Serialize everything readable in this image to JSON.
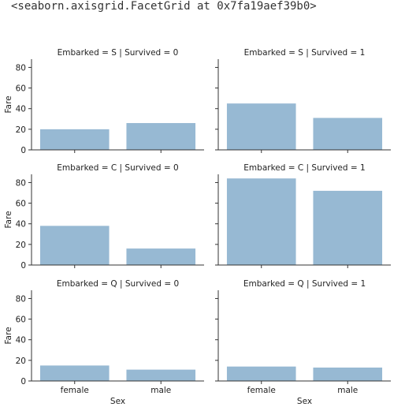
{
  "output_repr": "<seaborn.axisgrid.FacetGrid at 0x7fa19aef39b0>",
  "colors": {
    "bar": "#97b9d3",
    "axis": "#333333"
  },
  "chart_data": {
    "type": "bar",
    "layout": "facet-grid",
    "rows": 3,
    "cols": 2,
    "xlabel": "Sex",
    "ylabel": "Fare",
    "categories": [
      "female",
      "male"
    ],
    "ylim": [
      0,
      88
    ],
    "yticks": [
      0,
      20,
      40,
      60,
      80
    ],
    "grid": false,
    "panels": [
      {
        "title": "Embarked = S | Survived = 0",
        "values": [
          20,
          26
        ]
      },
      {
        "title": "Embarked = S | Survived = 1",
        "values": [
          45,
          31
        ]
      },
      {
        "title": "Embarked = C | Survived = 0",
        "values": [
          38,
          16
        ]
      },
      {
        "title": "Embarked = C | Survived = 1",
        "values": [
          84,
          72
        ]
      },
      {
        "title": "Embarked = Q | Survived = 0",
        "values": [
          15,
          11
        ]
      },
      {
        "title": "Embarked = Q | Survived = 1",
        "values": [
          14,
          13
        ]
      }
    ]
  }
}
